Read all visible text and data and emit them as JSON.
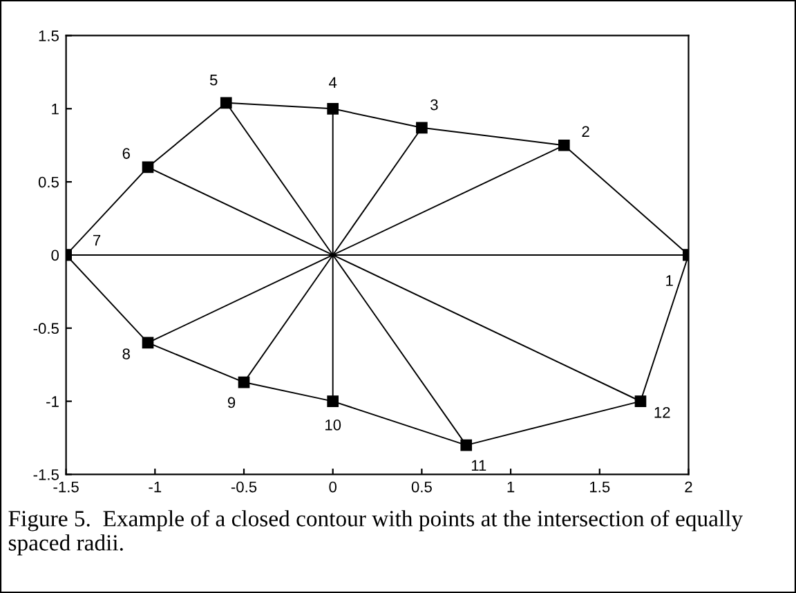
{
  "chart_data": {
    "type": "line",
    "xlim": [
      -1.5,
      2
    ],
    "ylim": [
      -1.5,
      1.5
    ],
    "xticks": [
      -1.5,
      -1,
      -0.5,
      0,
      0.5,
      1,
      1.5,
      2
    ],
    "yticks": [
      -1.5,
      -1,
      -0.5,
      0,
      0.5,
      1,
      1.5
    ],
    "grid": false,
    "legend": false,
    "series": [
      {
        "color": "#000000",
        "marker": "square",
        "x": [
          -1.5,
          -1.04,
          -0.6,
          0,
          0.5,
          1.3,
          2
        ],
        "values": [
          0,
          0.6,
          1.04,
          1,
          0.87,
          0.75,
          0
        ]
      },
      {
        "color": "#000000",
        "marker": "square",
        "x": [
          -1.5,
          -1.04,
          -0.5,
          0,
          0.75,
          1.73,
          2
        ],
        "values": [
          0,
          -0.6,
          -0.87,
          -1,
          -1.3,
          -1,
          0
        ]
      },
      {
        "color": "#000000",
        "marker": "none",
        "x": [
          -1.5,
          0,
          2
        ],
        "values": [
          0,
          0,
          0
        ]
      },
      {
        "color": "#000000",
        "marker": "none",
        "x": [
          -1.04,
          0,
          1.3
        ],
        "values": [
          -0.6,
          0,
          0.75
        ]
      },
      {
        "color": "#000000",
        "marker": "none",
        "x": [
          -0.5,
          0,
          0.5
        ],
        "values": [
          -0.87,
          0,
          0.87
        ]
      },
      {
        "color": "#000000",
        "marker": "none",
        "x": [
          0,
          0,
          0
        ],
        "values": [
          -1,
          0,
          1
        ]
      },
      {
        "color": "#000000",
        "marker": "none",
        "x": [
          -0.6,
          0,
          0.75
        ],
        "values": [
          1.04,
          0,
          -1.3
        ]
      },
      {
        "color": "#000000",
        "marker": "none",
        "x": [
          -1.04,
          0,
          1.73
        ],
        "values": [
          0.6,
          0,
          -1
        ]
      }
    ],
    "annotations": [
      {
        "text": "1",
        "x": 2,
        "y": 0
      },
      {
        "text": "2",
        "x": 1.3,
        "y": 0.75
      },
      {
        "text": "3",
        "x": 0.5,
        "y": 0.87
      },
      {
        "text": "4",
        "x": 0,
        "y": 1
      },
      {
        "text": "5",
        "x": -0.6,
        "y": 1.04
      },
      {
        "text": "6",
        "x": -1.04,
        "y": 0.6
      },
      {
        "text": "7",
        "x": -1.5,
        "y": 0
      },
      {
        "text": "8",
        "x": -1.04,
        "y": -0.6
      },
      {
        "text": "9",
        "x": -0.5,
        "y": -0.87
      },
      {
        "text": "10",
        "x": 0,
        "y": -1
      },
      {
        "text": "11",
        "x": 0.75,
        "y": -1.3
      },
      {
        "text": "12",
        "x": 1.73,
        "y": -1
      },
      "Figure 5.  Example of a closed contour with points at the intersection of equally spaced radii."
    ]
  }
}
